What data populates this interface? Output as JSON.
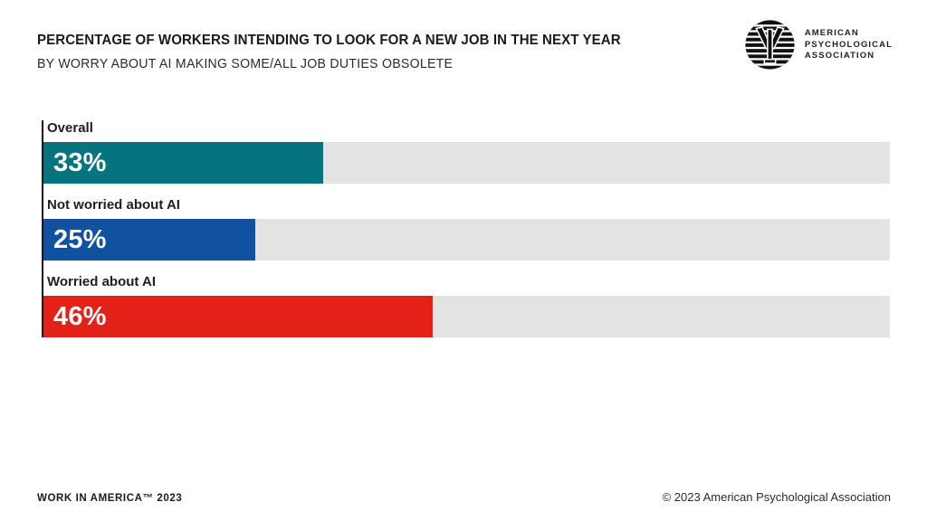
{
  "header": {
    "title": "PERCENTAGE OF WORKERS INTENDING TO LOOK FOR A NEW JOB IN THE NEXT YEAR",
    "subtitle": "BY WORRY ABOUT AI MAKING SOME/ALL JOB DUTIES OBSOLETE"
  },
  "logo": {
    "text_lines": [
      "AMERICAN",
      "PSYCHOLOGICAL",
      "ASSOCIATION"
    ]
  },
  "chart_data": {
    "type": "bar",
    "orientation": "horizontal",
    "title": "PERCENTAGE OF WORKERS INTENDING TO LOOK FOR A NEW JOB IN THE NEXT YEAR",
    "subtitle": "BY WORRY ABOUT AI MAKING SOME/ALL JOB DUTIES OBSOLETE",
    "categories": [
      "Overall",
      "Not worried about AI",
      "Worried about AI"
    ],
    "values": [
      33,
      25,
      46
    ],
    "value_labels": [
      "33%",
      "25%",
      "46%"
    ],
    "bar_colors": [
      "#06747E",
      "#1052A0",
      "#E32119"
    ],
    "track_color": "#E3E3E3",
    "xlim": [
      0,
      100
    ],
    "grid": false,
    "legend": false
  },
  "footer": {
    "left": "WORK IN AMERICA™ 2023",
    "right": "© 2023 American Psychological Association"
  }
}
